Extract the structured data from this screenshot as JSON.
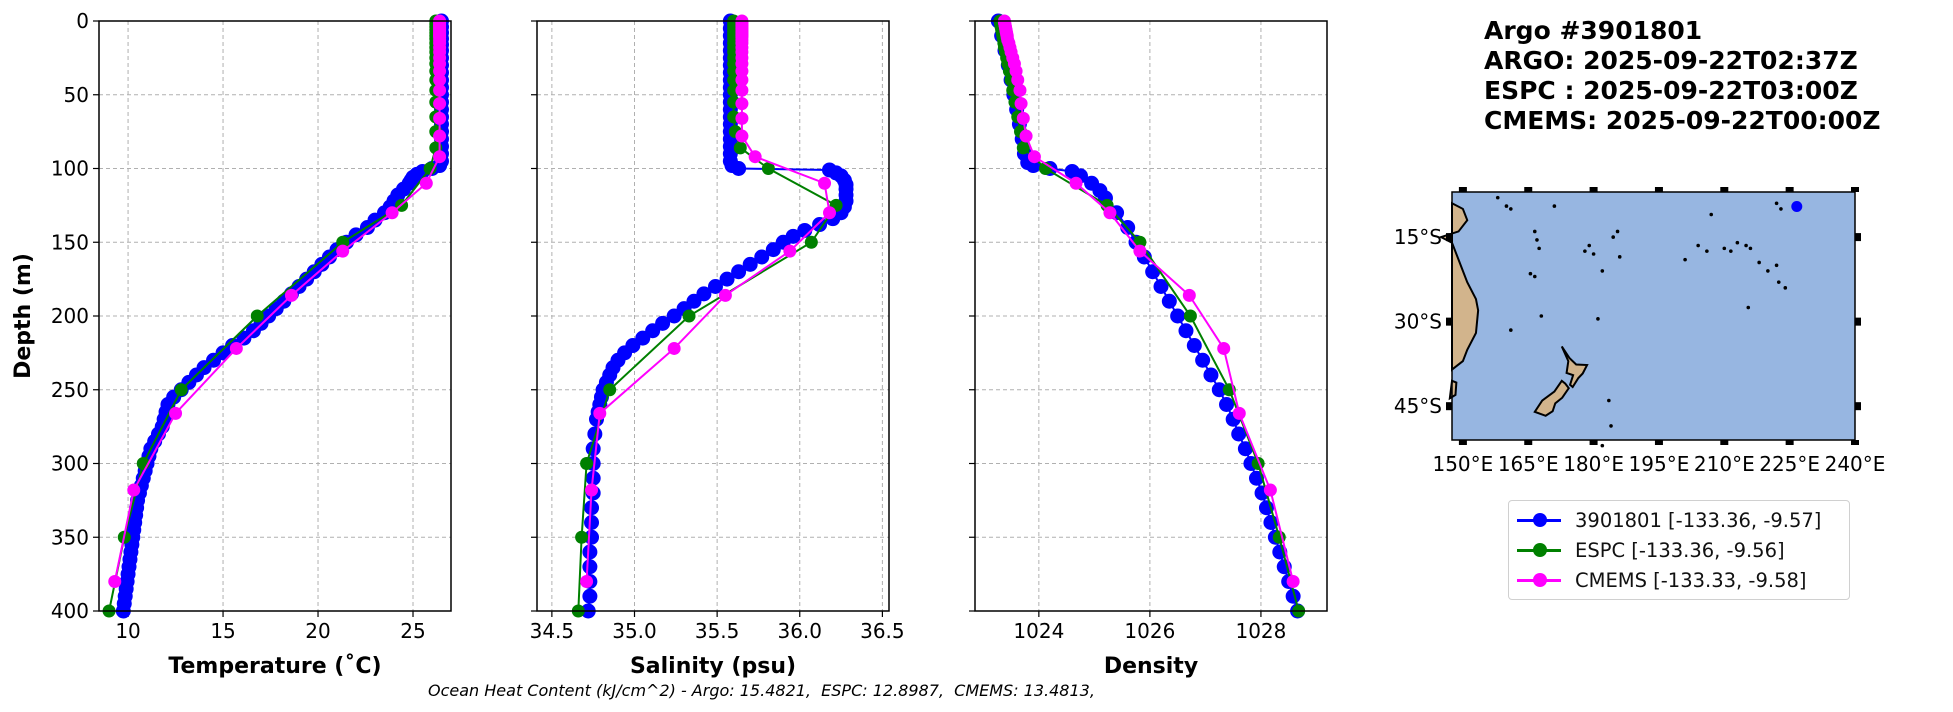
{
  "info": {
    "title": "Argo #3901801",
    "argo_time": "ARGO: 2025-09-22T02:37Z",
    "espc_time": "ESPC : 2025-09-22T03:00Z",
    "cmems_time": "CMEMS: 2025-09-22T00:00Z"
  },
  "footnote": "Ocean Heat Content (kJ/cm^2) - Argo: 15.4821,  ESPC: 12.8987,  CMEMS: 13.4813,",
  "legend": [
    {
      "label": "3901801 [-133.36, -9.57]",
      "color": "#0000ff"
    },
    {
      "label": "ESPC [-133.36, -9.56]",
      "color": "#008000"
    },
    {
      "label": "CMEMS [-133.33, -9.58]",
      "color": "#ff00ff"
    }
  ],
  "colors": {
    "argo": "#0000ff",
    "espc": "#008000",
    "cmems": "#ff00ff",
    "ocean": "#97b6e1",
    "land": "#d2b48c",
    "grid": "#b0b0b0"
  },
  "chart_data": [
    {
      "type": "line",
      "title": "",
      "xlabel": "Temperature (˚C)",
      "ylabel": "Depth (m)",
      "xlim": [
        8.47,
        27.0
      ],
      "ylim": [
        400,
        0
      ],
      "xticks": [
        10,
        15,
        20,
        25
      ],
      "xtick_labels": [
        "10",
        "15",
        "20",
        "25"
      ],
      "yticks": [
        0,
        50,
        100,
        150,
        200,
        250,
        300,
        350,
        400
      ],
      "ytick_labels": [
        "0",
        "50",
        "100",
        "150",
        "200",
        "250",
        "300",
        "350",
        "400"
      ],
      "grid": true,
      "series": [
        {
          "name": "3901801",
          "key": "argo",
          "marker_step": 1,
          "depth": [
            0,
            4,
            8,
            12,
            16,
            20,
            25,
            30,
            35,
            40,
            45,
            50,
            55,
            60,
            65,
            70,
            75,
            80,
            85,
            90,
            95,
            98,
            100,
            102,
            104,
            106,
            108,
            110,
            114,
            118,
            122,
            126,
            130,
            135,
            140,
            145,
            150,
            155,
            160,
            165,
            170,
            175,
            180,
            185,
            190,
            195,
            200,
            205,
            210,
            215,
            220,
            225,
            230,
            235,
            240,
            245,
            250,
            255,
            260,
            265,
            270,
            275,
            280,
            285,
            290,
            295,
            300,
            305,
            310,
            315,
            320,
            325,
            330,
            335,
            340,
            345,
            350,
            355,
            360,
            365,
            370,
            375,
            380,
            385,
            390,
            395,
            400
          ],
          "values": [
            26.5,
            26.5,
            26.5,
            26.5,
            26.5,
            26.5,
            26.5,
            26.5,
            26.5,
            26.5,
            26.5,
            26.5,
            26.5,
            26.5,
            26.5,
            26.5,
            26.5,
            26.5,
            26.5,
            26.5,
            26.5,
            26.4,
            26.0,
            25.5,
            25.2,
            25.0,
            24.9,
            24.8,
            24.5,
            24.2,
            24.0,
            23.8,
            23.5,
            23.0,
            22.6,
            22.0,
            21.5,
            21.0,
            20.6,
            20.2,
            19.8,
            19.4,
            19.0,
            18.6,
            18.2,
            17.8,
            17.4,
            17.0,
            16.6,
            16.1,
            15.5,
            15.0,
            14.5,
            14.0,
            13.6,
            13.2,
            12.8,
            12.4,
            12.1,
            12.0,
            11.9,
            11.8,
            11.6,
            11.4,
            11.2,
            11.1,
            11.0,
            10.9,
            10.8,
            10.7,
            10.6,
            10.5,
            10.45,
            10.4,
            10.35,
            10.3,
            10.25,
            10.2,
            10.15,
            10.1,
            10.05,
            10.0,
            9.95,
            9.9,
            9.85,
            9.8,
            9.75
          ]
        },
        {
          "name": "ESPC",
          "key": "espc",
          "marker_step": 1,
          "depth": [
            0,
            2,
            4,
            6,
            8,
            10,
            12,
            15,
            18,
            21,
            25,
            29,
            34,
            40,
            47,
            55,
            65,
            75,
            86,
            100,
            125,
            150,
            200,
            250,
            300,
            350,
            400
          ],
          "values": [
            26.2,
            26.2,
            26.2,
            26.2,
            26.2,
            26.2,
            26.2,
            26.2,
            26.2,
            26.2,
            26.2,
            26.2,
            26.2,
            26.2,
            26.2,
            26.2,
            26.2,
            26.2,
            26.2,
            25.9,
            24.4,
            21.3,
            16.8,
            12.8,
            10.8,
            9.8,
            9.0
          ]
        },
        {
          "name": "CMEMS",
          "key": "cmems",
          "marker_step": 1,
          "depth": [
            0,
            1,
            2,
            3,
            4,
            5,
            6,
            7,
            8,
            9,
            10,
            11,
            13,
            15,
            18,
            21,
            25,
            29,
            34,
            40,
            47,
            56,
            66,
            78,
            92,
            110,
            130,
            156,
            186,
            222,
            266,
            318,
            380
          ],
          "values": [
            26.4,
            26.4,
            26.4,
            26.4,
            26.4,
            26.4,
            26.4,
            26.4,
            26.4,
            26.4,
            26.4,
            26.4,
            26.4,
            26.4,
            26.4,
            26.4,
            26.4,
            26.4,
            26.4,
            26.4,
            26.4,
            26.4,
            26.4,
            26.4,
            26.4,
            25.7,
            23.9,
            21.3,
            18.6,
            15.7,
            12.5,
            10.3,
            9.3
          ]
        }
      ]
    },
    {
      "type": "line",
      "title": "",
      "xlabel": "Salinity (psu)",
      "ylabel": "",
      "xlim": [
        34.41,
        36.54
      ],
      "ylim": [
        400,
        0
      ],
      "xticks": [
        34.5,
        35.0,
        35.5,
        36.0,
        36.5
      ],
      "xtick_labels": [
        "34.5",
        "35.0",
        "35.5",
        "36.0",
        "36.5"
      ],
      "yticks": [
        0,
        50,
        100,
        150,
        200,
        250,
        300,
        350,
        400
      ],
      "grid": true,
      "series": [
        {
          "name": "3901801",
          "key": "argo",
          "depth": [
            0,
            5,
            10,
            15,
            20,
            25,
            30,
            35,
            40,
            45,
            50,
            55,
            60,
            65,
            70,
            75,
            80,
            85,
            90,
            95,
            98,
            100,
            101,
            103,
            105,
            108,
            111,
            114,
            118,
            122,
            126,
            130,
            134,
            138,
            142,
            146,
            150,
            155,
            160,
            165,
            170,
            175,
            180,
            185,
            190,
            195,
            200,
            205,
            210,
            215,
            220,
            225,
            230,
            235,
            240,
            245,
            250,
            255,
            260,
            265,
            270,
            280,
            290,
            300,
            310,
            320,
            330,
            340,
            350,
            360,
            370,
            380,
            390,
            400
          ],
          "values": [
            35.58,
            35.58,
            35.58,
            35.58,
            35.58,
            35.58,
            35.58,
            35.58,
            35.58,
            35.58,
            35.58,
            35.58,
            35.58,
            35.58,
            35.58,
            35.58,
            35.58,
            35.58,
            35.58,
            35.58,
            35.59,
            35.63,
            36.18,
            36.22,
            36.25,
            36.27,
            36.28,
            36.28,
            36.28,
            36.28,
            36.27,
            36.25,
            36.2,
            36.12,
            36.03,
            35.96,
            35.9,
            35.84,
            35.77,
            35.7,
            35.63,
            35.56,
            35.49,
            35.42,
            35.36,
            35.3,
            35.24,
            35.17,
            35.11,
            35.05,
            34.99,
            34.94,
            34.9,
            34.87,
            34.85,
            34.83,
            34.81,
            34.8,
            34.79,
            34.78,
            34.77,
            34.76,
            34.75,
            34.75,
            34.75,
            34.75,
            34.74,
            34.74,
            34.74,
            34.73,
            34.73,
            34.73,
            34.73,
            34.72
          ]
        },
        {
          "name": "ESPC",
          "key": "espc",
          "depth": [
            0,
            2,
            4,
            6,
            8,
            10,
            12,
            15,
            18,
            21,
            25,
            29,
            34,
            40,
            47,
            55,
            65,
            75,
            86,
            100,
            125,
            150,
            200,
            250,
            300,
            350,
            400
          ],
          "values": [
            35.6,
            35.6,
            35.6,
            35.6,
            35.6,
            35.6,
            35.6,
            35.6,
            35.6,
            35.6,
            35.6,
            35.6,
            35.6,
            35.6,
            35.6,
            35.6,
            35.6,
            35.61,
            35.64,
            35.81,
            36.22,
            36.07,
            35.33,
            34.85,
            34.71,
            34.68,
            34.66
          ]
        },
        {
          "name": "CMEMS",
          "key": "cmems",
          "depth": [
            0,
            1,
            2,
            3,
            4,
            5,
            6,
            7,
            8,
            9,
            10,
            11,
            13,
            15,
            18,
            21,
            25,
            29,
            34,
            40,
            47,
            56,
            66,
            78,
            92,
            110,
            130,
            156,
            186,
            222,
            266,
            318,
            380
          ],
          "values": [
            35.65,
            35.65,
            35.65,
            35.65,
            35.65,
            35.65,
            35.65,
            35.65,
            35.65,
            35.65,
            35.65,
            35.65,
            35.65,
            35.65,
            35.65,
            35.65,
            35.65,
            35.65,
            35.65,
            35.65,
            35.65,
            35.65,
            35.65,
            35.65,
            35.73,
            36.15,
            36.18,
            35.94,
            35.55,
            35.24,
            34.79,
            34.74,
            34.71
          ]
        }
      ]
    },
    {
      "type": "line",
      "title": "",
      "xlabel": "Density",
      "ylabel": "",
      "xlim": [
        1022.85,
        1029.19
      ],
      "ylim": [
        400,
        0
      ],
      "xticks": [
        1024,
        1026,
        1028
      ],
      "xtick_labels": [
        "1024",
        "1026",
        "1028"
      ],
      "yticks": [
        0,
        50,
        100,
        150,
        200,
        250,
        300,
        350,
        400
      ],
      "grid": true,
      "series": [
        {
          "name": "3901801",
          "key": "argo",
          "depth": [
            0,
            10,
            20,
            30,
            40,
            50,
            60,
            70,
            80,
            90,
            96,
            98,
            100,
            102,
            105,
            110,
            115,
            120,
            130,
            140,
            150,
            160,
            170,
            180,
            190,
            200,
            210,
            220,
            230,
            240,
            250,
            260,
            270,
            280,
            290,
            300,
            310,
            320,
            330,
            340,
            350,
            360,
            370,
            380,
            390,
            400
          ],
          "values": [
            1023.27,
            1023.33,
            1023.39,
            1023.45,
            1023.5,
            1023.55,
            1023.6,
            1023.65,
            1023.7,
            1023.74,
            1023.8,
            1023.9,
            1024.2,
            1024.6,
            1024.75,
            1024.95,
            1025.1,
            1025.2,
            1025.4,
            1025.6,
            1025.75,
            1025.9,
            1026.05,
            1026.2,
            1026.35,
            1026.5,
            1026.65,
            1026.8,
            1026.95,
            1027.1,
            1027.25,
            1027.38,
            1027.5,
            1027.6,
            1027.72,
            1027.82,
            1027.92,
            1028.02,
            1028.1,
            1028.18,
            1028.26,
            1028.34,
            1028.42,
            1028.5,
            1028.58,
            1028.66
          ]
        },
        {
          "name": "ESPC",
          "key": "espc",
          "depth": [
            0,
            2,
            4,
            6,
            8,
            10,
            12,
            15,
            18,
            21,
            25,
            29,
            34,
            40,
            47,
            55,
            65,
            75,
            86,
            100,
            125,
            150,
            200,
            250,
            300,
            350,
            400
          ],
          "values": [
            1023.3,
            1023.31,
            1023.32,
            1023.33,
            1023.34,
            1023.35,
            1023.36,
            1023.37,
            1023.38,
            1023.4,
            1023.42,
            1023.44,
            1023.47,
            1023.5,
            1023.53,
            1023.57,
            1023.62,
            1023.67,
            1023.72,
            1024.12,
            1025.23,
            1025.82,
            1026.73,
            1027.43,
            1027.95,
            1028.33,
            1028.68
          ]
        },
        {
          "name": "CMEMS",
          "key": "cmems",
          "depth": [
            0,
            1,
            2,
            3,
            4,
            5,
            6,
            7,
            8,
            9,
            10,
            11,
            13,
            15,
            18,
            21,
            25,
            29,
            34,
            40,
            47,
            56,
            66,
            78,
            92,
            110,
            130,
            156,
            186,
            222,
            266,
            318,
            380
          ],
          "values": [
            1023.38,
            1023.38,
            1023.39,
            1023.39,
            1023.4,
            1023.4,
            1023.41,
            1023.41,
            1023.42,
            1023.42,
            1023.43,
            1023.43,
            1023.44,
            1023.46,
            1023.48,
            1023.5,
            1023.53,
            1023.56,
            1023.59,
            1023.62,
            1023.66,
            1023.68,
            1023.72,
            1023.77,
            1023.92,
            1024.67,
            1025.28,
            1025.82,
            1026.71,
            1027.33,
            1027.61,
            1028.17,
            1028.58
          ]
        }
      ]
    },
    {
      "type": "scatter",
      "title": "",
      "xlim": [
        147.5,
        240
      ],
      "ylim": [
        -51,
        -7
      ],
      "xticks": [
        150,
        165,
        180,
        195,
        210,
        225,
        240
      ],
      "xtick_labels": [
        "150°E",
        "165°E",
        "180°E",
        "195°E",
        "210°E",
        "225°E",
        "240°E"
      ],
      "yticks": [
        -15,
        -30,
        -45
      ],
      "ytick_labels": [
        "15°S",
        "30°S",
        "45°S"
      ],
      "points": [
        {
          "name": "3901801",
          "lon": 226.64,
          "lat": -9.57,
          "color": "#0000ff"
        }
      ]
    }
  ]
}
